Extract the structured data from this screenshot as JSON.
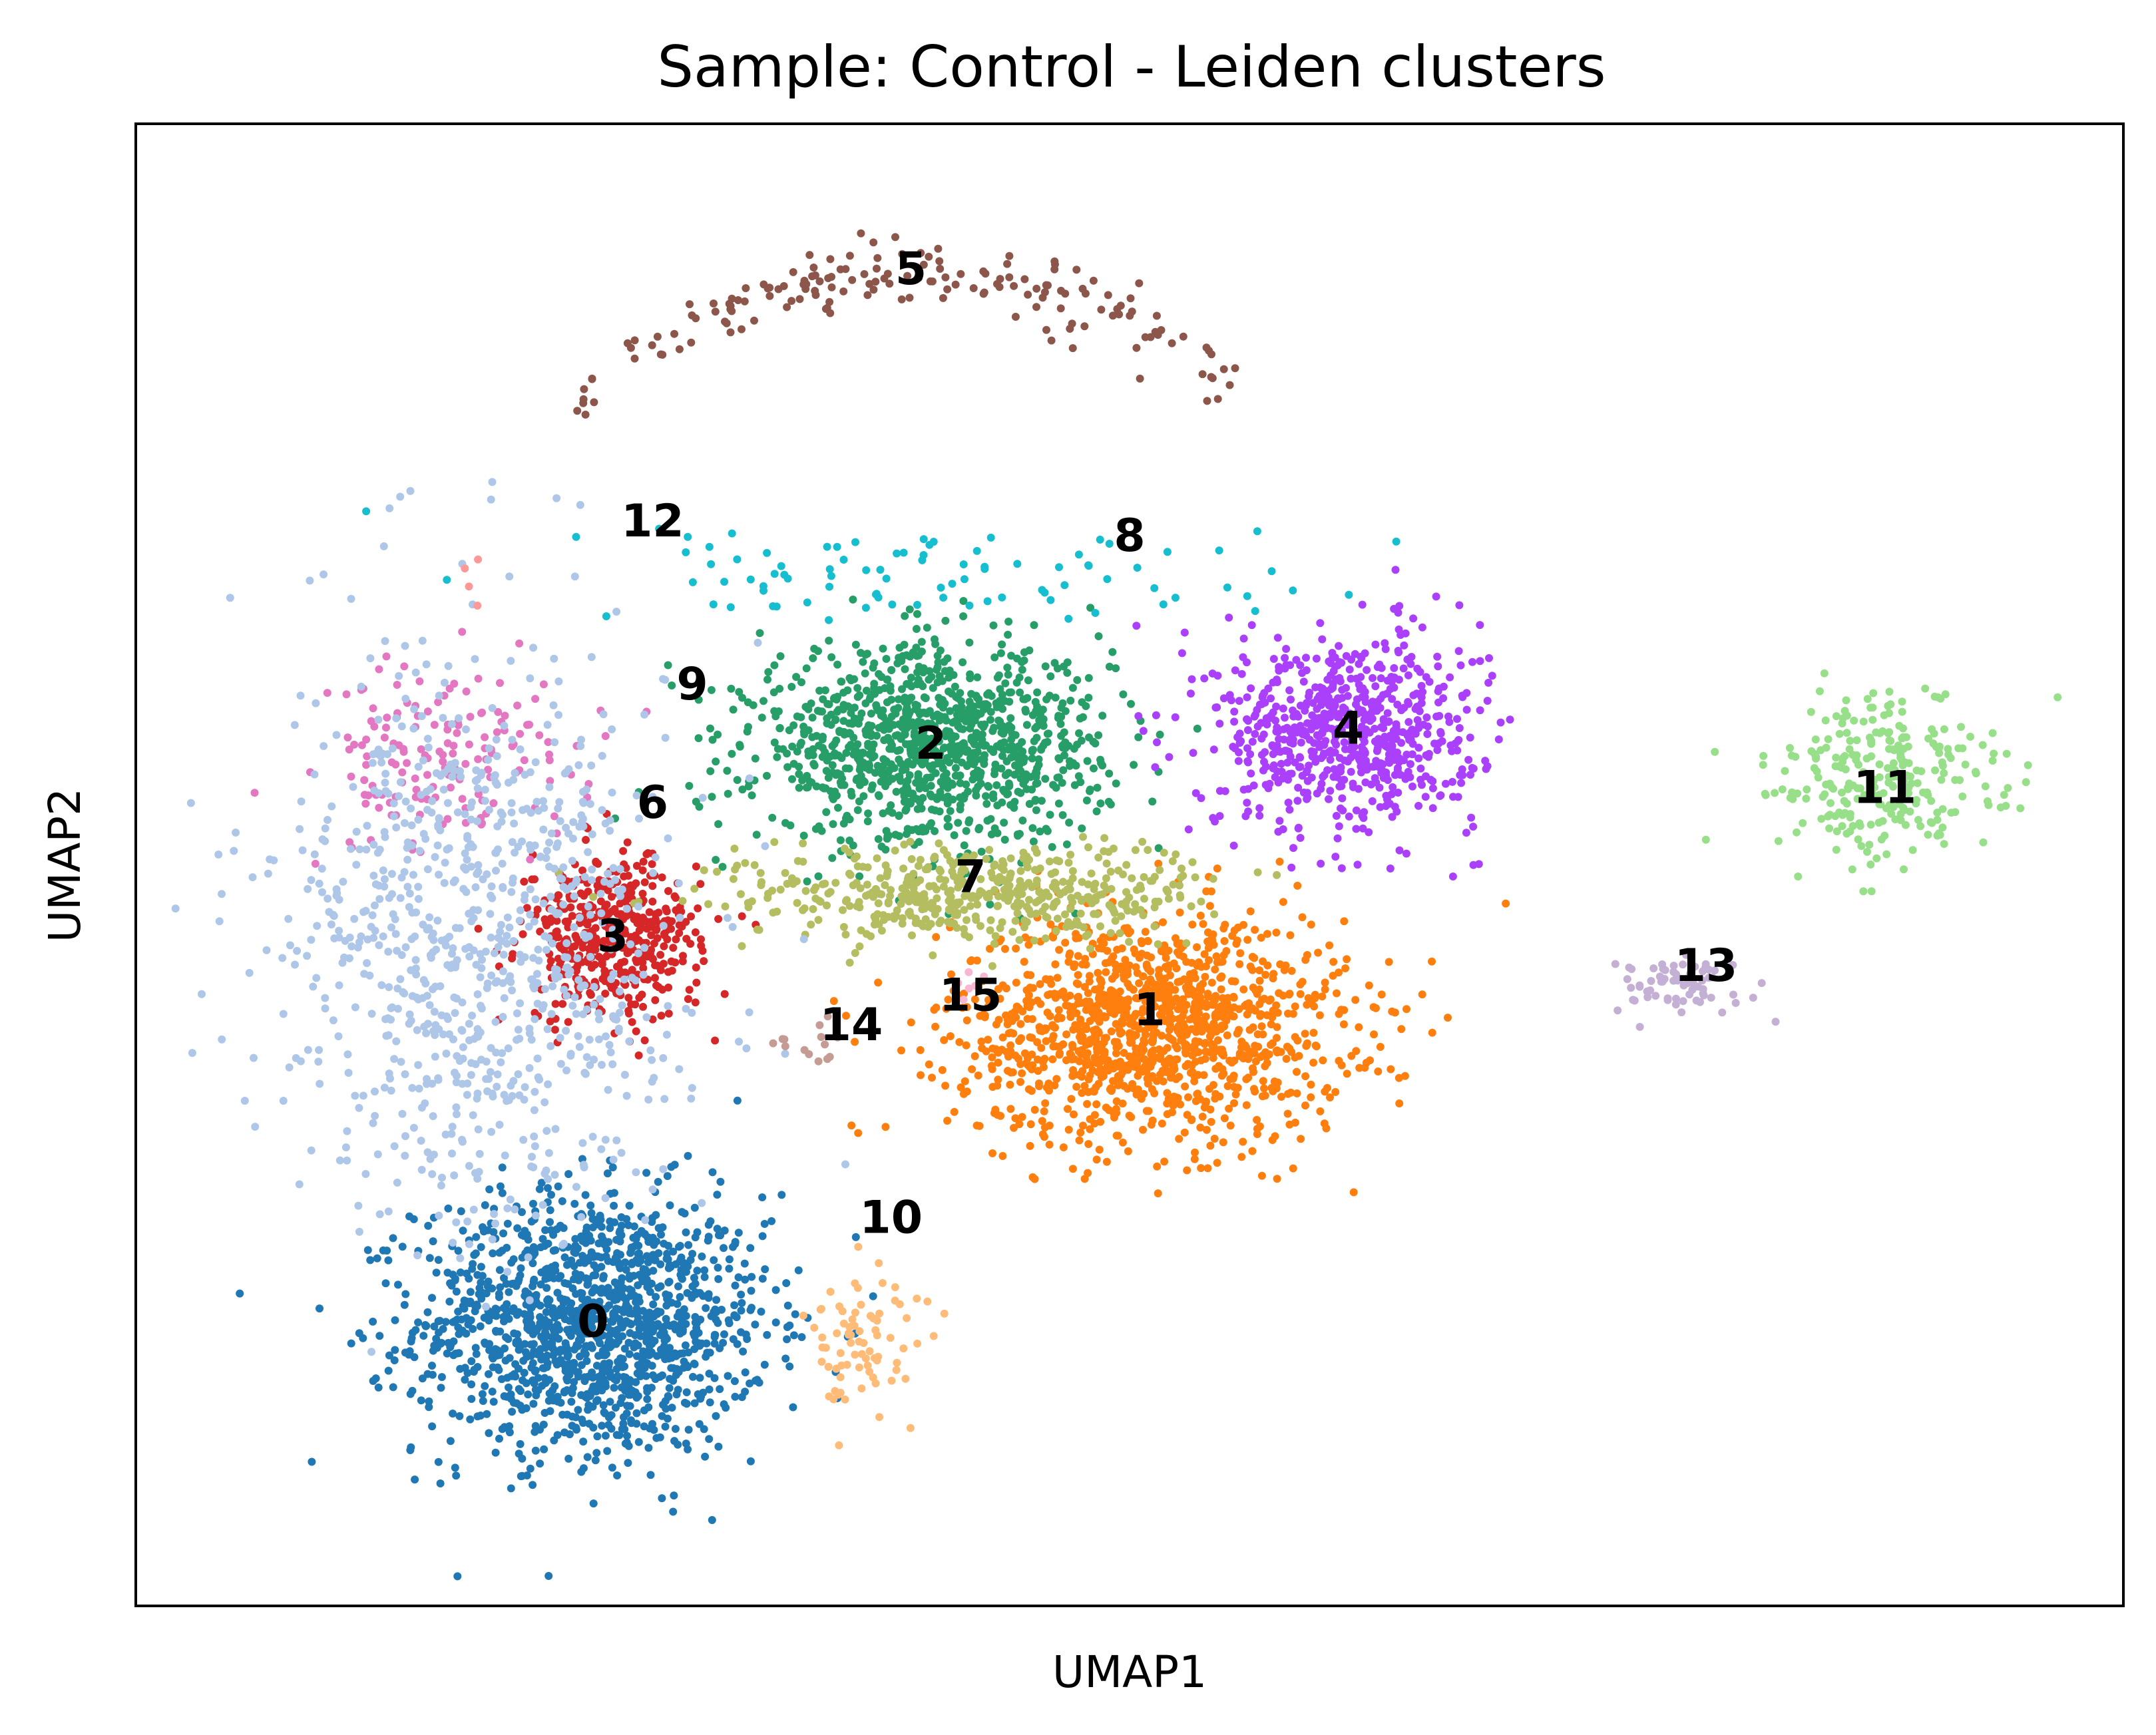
{
  "chart_data": {
    "type": "scatter",
    "title": "Sample: Control - Leiden clusters",
    "xlabel": "UMAP1",
    "ylabel": "UMAP2",
    "xlim": [
      0,
      100
    ],
    "ylim": [
      0,
      100
    ],
    "grid": false,
    "legend": "on data",
    "ticks": "none",
    "clusters": [
      {
        "label": "0",
        "color": "#1f77b4",
        "center": [
          23,
          19
        ],
        "spread": [
          8,
          8
        ],
        "count": 1400
      },
      {
        "label": "1",
        "color": "#ff7f0e",
        "center": [
          51,
          39
        ],
        "spread": [
          9,
          7
        ],
        "count": 1300
      },
      {
        "label": "2",
        "color": "#279e68",
        "center": [
          40,
          58
        ],
        "spread": [
          8,
          6
        ],
        "count": 1100
      },
      {
        "label": "3",
        "color": "#d62728",
        "center": [
          24,
          45
        ],
        "spread": [
          4,
          5
        ],
        "count": 450
      },
      {
        "label": "4",
        "color": "#aa40fc",
        "center": [
          61,
          59
        ],
        "spread": [
          6,
          6
        ],
        "count": 700
      },
      {
        "label": "5",
        "color": "#8c564b",
        "center": [
          39,
          90
        ],
        "spread": [
          12,
          3
        ],
        "count": 170
      },
      {
        "label": "6",
        "color": "#e377c2",
        "center": [
          16,
          57
        ],
        "spread": [
          6,
          6
        ],
        "count": 160
      },
      {
        "label": "7",
        "color": "#b5bd61",
        "center": [
          42,
          48
        ],
        "spread": [
          11,
          3
        ],
        "count": 500
      },
      {
        "label": "8",
        "color": "#17becf",
        "center": [
          40,
          70
        ],
        "spread": [
          20,
          3
        ],
        "count": 90
      },
      {
        "label": "9",
        "color": "#aec7e8",
        "center": [
          17,
          45
        ],
        "spread": [
          9,
          17
        ],
        "count": 900
      },
      {
        "label": "10",
        "color": "#ffbb78",
        "center": [
          37,
          18
        ],
        "spread": [
          3,
          4
        ],
        "count": 80
      },
      {
        "label": "11",
        "color": "#98df8a",
        "center": [
          88,
          56
        ],
        "spread": [
          5,
          5
        ],
        "count": 280
      },
      {
        "label": "12",
        "color": "#ff9896",
        "center": [
          17,
          70
        ],
        "spread": [
          2,
          2
        ],
        "count": 4
      },
      {
        "label": "13",
        "color": "#c5b0d5",
        "center": [
          78,
          42
        ],
        "spread": [
          3,
          2
        ],
        "count": 70
      },
      {
        "label": "14",
        "color": "#c49c94",
        "center": [
          34,
          38
        ],
        "spread": [
          2,
          2
        ],
        "count": 14
      },
      {
        "label": "15",
        "color": "#f7b6d2",
        "center": [
          42,
          42
        ],
        "spread": [
          2,
          2
        ],
        "count": 6
      }
    ],
    "cluster_labels": [
      {
        "text": "0",
        "x": 23,
        "y": 19
      },
      {
        "text": "1",
        "x": 51,
        "y": 40
      },
      {
        "text": "2",
        "x": 40,
        "y": 58
      },
      {
        "text": "3",
        "x": 24,
        "y": 45
      },
      {
        "text": "4",
        "x": 61,
        "y": 59
      },
      {
        "text": "5",
        "x": 39,
        "y": 90
      },
      {
        "text": "6",
        "x": 26,
        "y": 54
      },
      {
        "text": "7",
        "x": 42,
        "y": 49
      },
      {
        "text": "8",
        "x": 50,
        "y": 72
      },
      {
        "text": "9",
        "x": 28,
        "y": 62
      },
      {
        "text": "10",
        "x": 38,
        "y": 26
      },
      {
        "text": "11",
        "x": 88,
        "y": 55
      },
      {
        "text": "12",
        "x": 26,
        "y": 73
      },
      {
        "text": "13",
        "x": 79,
        "y": 43
      },
      {
        "text": "14",
        "x": 36,
        "y": 39
      },
      {
        "text": "15",
        "x": 42,
        "y": 41
      }
    ]
  }
}
